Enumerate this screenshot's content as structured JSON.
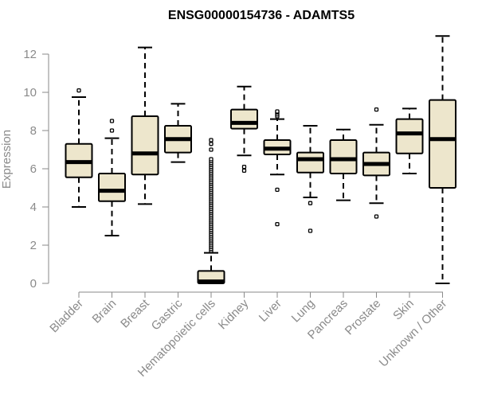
{
  "chart_data": {
    "type": "boxplot",
    "title": "ENSG00000154736 - ADAMTS5",
    "xlabel": "",
    "ylabel": "Expression",
    "ylim": [
      0,
      12.5
    ],
    "yticks": [
      "0",
      "2",
      "4",
      "6",
      "8",
      "10",
      "12"
    ],
    "grid": false,
    "legend": "none",
    "box_color": "#ede6cc",
    "categories": [
      "Bladder",
      "Brain",
      "Breast",
      "Gastric",
      "Hematopoietic cells",
      "Kidney",
      "Liver",
      "Lung",
      "Pancreas",
      "Prostate",
      "Skin",
      "Unknown / Other"
    ],
    "boxes": [
      {
        "name": "Bladder",
        "min": 4.0,
        "q1": 5.55,
        "median": 6.35,
        "q3": 7.3,
        "max": 9.75,
        "outliers": [
          10.1
        ]
      },
      {
        "name": "Brain",
        "min": 2.5,
        "q1": 4.3,
        "median": 4.85,
        "q3": 5.75,
        "max": 7.6,
        "outliers": [
          8.0,
          8.5
        ]
      },
      {
        "name": "Breast",
        "min": 4.15,
        "q1": 5.7,
        "median": 6.8,
        "q3": 8.75,
        "max": 12.35,
        "outliers": []
      },
      {
        "name": "Gastric",
        "min": 6.35,
        "q1": 6.85,
        "median": 7.55,
        "q3": 8.25,
        "max": 9.4,
        "outliers": []
      },
      {
        "name": "Hematopoietic cells",
        "min": 0.0,
        "q1": 0.0,
        "median": 0.1,
        "q3": 0.65,
        "max": 1.6,
        "outliers": [
          1.7,
          1.8,
          1.9,
          2.0,
          2.1,
          2.2,
          2.3,
          2.4,
          2.5,
          2.6,
          2.7,
          2.8,
          2.9,
          3.0,
          3.1,
          3.2,
          3.3,
          3.4,
          3.5,
          3.6,
          3.7,
          3.8,
          3.9,
          4.0,
          4.1,
          4.2,
          4.3,
          4.4,
          4.5,
          4.6,
          4.7,
          4.8,
          4.9,
          5.0,
          5.1,
          5.2,
          5.3,
          5.4,
          5.5,
          5.6,
          5.7,
          5.8,
          5.9,
          6.0,
          6.1,
          6.2,
          6.3,
          6.4,
          6.5,
          7.0,
          7.3,
          7.5
        ]
      },
      {
        "name": "Kidney",
        "min": 6.7,
        "q1": 8.1,
        "median": 8.4,
        "q3": 9.1,
        "max": 10.3,
        "outliers": [
          5.9,
          6.1
        ]
      },
      {
        "name": "Liver",
        "min": 5.7,
        "q1": 6.75,
        "median": 7.05,
        "q3": 7.5,
        "max": 8.6,
        "outliers": [
          3.1,
          4.9,
          8.75,
          8.85,
          8.95,
          9.0
        ]
      },
      {
        "name": "Lung",
        "min": 4.5,
        "q1": 5.8,
        "median": 6.5,
        "q3": 6.85,
        "max": 8.25,
        "outliers": [
          2.75,
          4.2
        ]
      },
      {
        "name": "Pancreas",
        "min": 4.35,
        "q1": 5.75,
        "median": 6.5,
        "q3": 7.5,
        "max": 8.05,
        "outliers": []
      },
      {
        "name": "Prostate",
        "min": 4.2,
        "q1": 5.65,
        "median": 6.25,
        "q3": 6.85,
        "max": 8.3,
        "outliers": [
          3.5,
          9.1
        ]
      },
      {
        "name": "Skin",
        "min": 5.75,
        "q1": 6.8,
        "median": 7.85,
        "q3": 8.6,
        "max": 9.15,
        "outliers": []
      },
      {
        "name": "Unknown / Other",
        "min": 0.0,
        "q1": 5.0,
        "median": 7.55,
        "q3": 9.6,
        "max": 12.95,
        "outliers": []
      }
    ]
  }
}
